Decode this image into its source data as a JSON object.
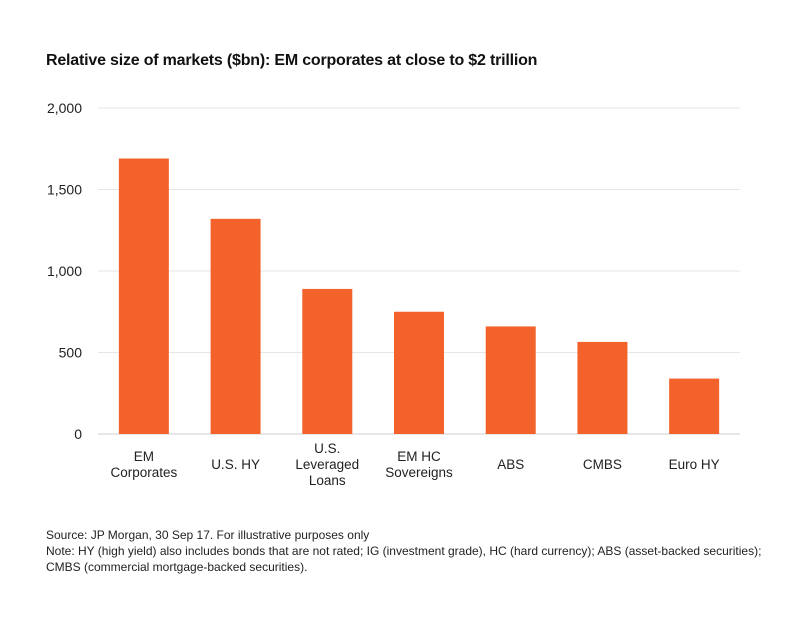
{
  "colors": {
    "bar": "#F2622A",
    "grid": "#E6E6E6",
    "axis": "#CFCFCF"
  },
  "chart_data": {
    "type": "bar",
    "title": "Relative size of markets ($bn): EM corporates at close to $2 trillion",
    "categories": [
      [
        "EM",
        "Corporates"
      ],
      [
        "U.S. HY"
      ],
      [
        "U.S.",
        "Leveraged",
        "Loans"
      ],
      [
        "EM HC",
        "Sovereigns"
      ],
      [
        "ABS"
      ],
      [
        "CMBS"
      ],
      [
        "Euro HY"
      ]
    ],
    "values": [
      1690,
      1320,
      890,
      750,
      660,
      565,
      340
    ],
    "ylim": [
      0,
      2000
    ],
    "yticks": [
      0,
      500,
      1000,
      1500,
      2000
    ],
    "ytick_labels": [
      "0",
      "500",
      "1,000",
      "1,500",
      "2,000"
    ],
    "grid": true,
    "xlabel": "",
    "ylabel": ""
  },
  "footer": {
    "source": "Source: JP Morgan, 30 Sep 17. For illustrative purposes only",
    "note": "Note: HY (high yield) also includes bonds that are not rated; IG (investment grade), HC (hard currency); ABS (asset-backed securities); CMBS (commercial mortgage-backed securities)."
  }
}
